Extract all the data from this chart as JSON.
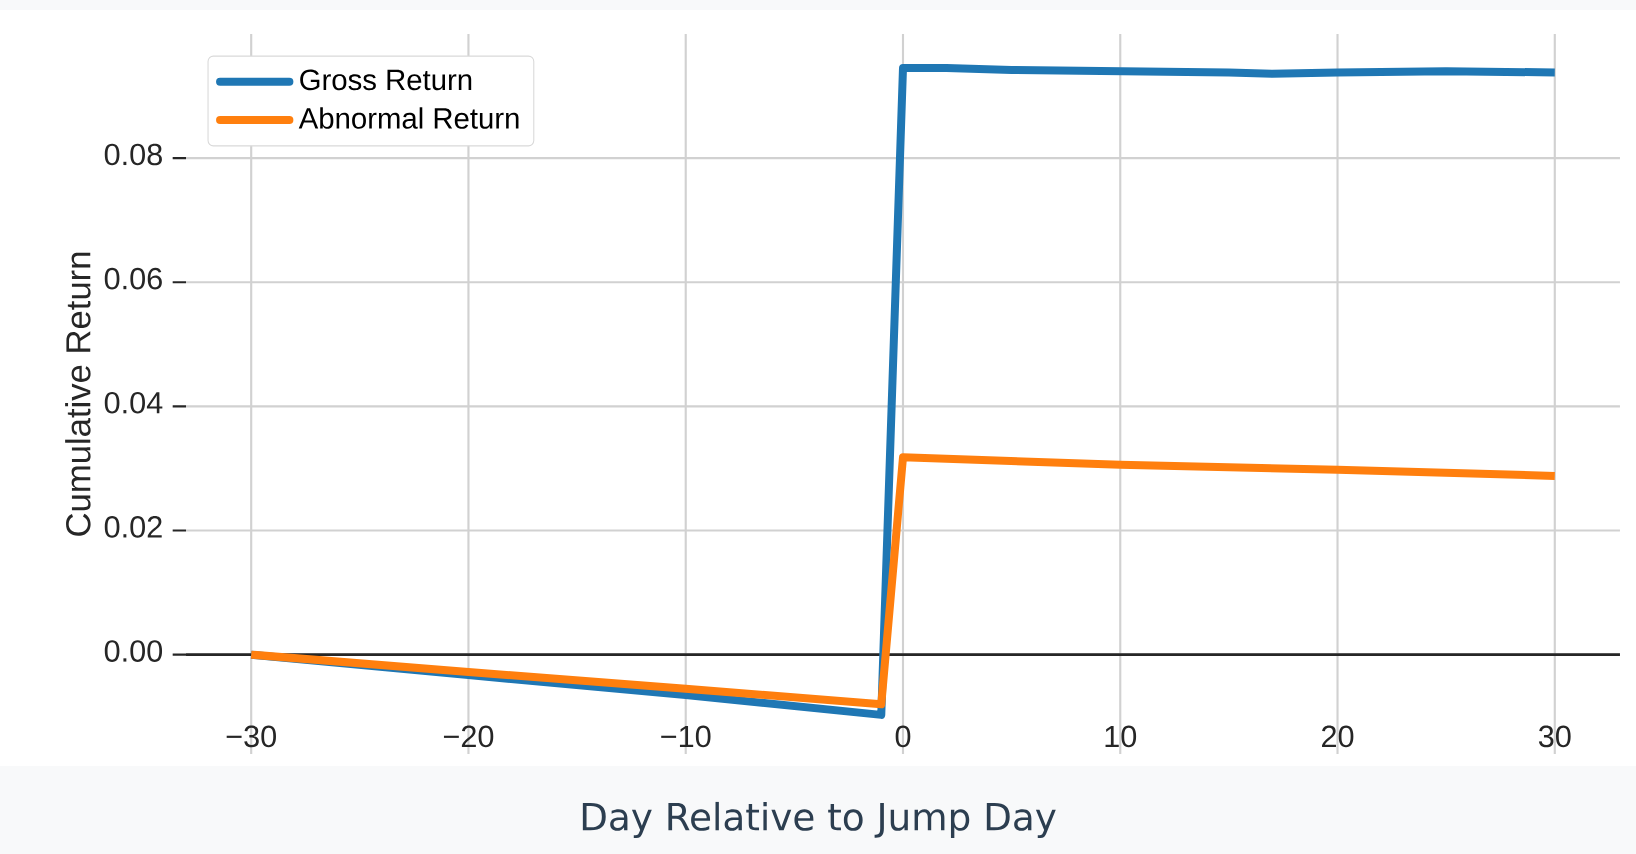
{
  "chart_data": {
    "type": "line",
    "xlabel": "Day Relative to Jump Day",
    "ylabel": "Cumulative Return",
    "series": [
      {
        "name": "Gross Return",
        "color": "#1f77b4",
        "x": [
          -30,
          -20,
          -10,
          -1,
          0,
          2,
          5,
          10,
          15,
          17,
          20,
          25,
          30
        ],
        "values": [
          0,
          -0.0033,
          -0.0065,
          -0.0097,
          0.0945,
          0.0945,
          0.0942,
          0.094,
          0.0938,
          0.0936,
          0.0938,
          0.094,
          0.0938
        ]
      },
      {
        "name": "Abnormal Return",
        "color": "#ff7f0e",
        "x": [
          -30,
          -20,
          -10,
          -1,
          0,
          10,
          20,
          30
        ],
        "values": [
          0,
          -0.0028,
          -0.0055,
          -0.008,
          0.0318,
          0.0306,
          0.0298,
          0.0288
        ]
      }
    ],
    "xlim": [
      -33,
      33
    ],
    "ylim": [
      -0.016,
      0.1
    ],
    "xticks": [
      {
        "value": -30,
        "label": "−30"
      },
      {
        "value": -20,
        "label": "−20"
      },
      {
        "value": -10,
        "label": "−10"
      },
      0,
      10,
      20,
      30
    ],
    "yticks": [
      {
        "value": 0,
        "label": "0.00"
      },
      {
        "value": 0.02,
        "label": "0.02"
      },
      {
        "value": 0.04,
        "label": "0.04"
      },
      {
        "value": 0.06,
        "label": "0.06"
      },
      {
        "value": 0.08,
        "label": "0.08"
      }
    ],
    "grid": true,
    "legend": "top left",
    "marker": "none",
    "line_style": "solid"
  }
}
